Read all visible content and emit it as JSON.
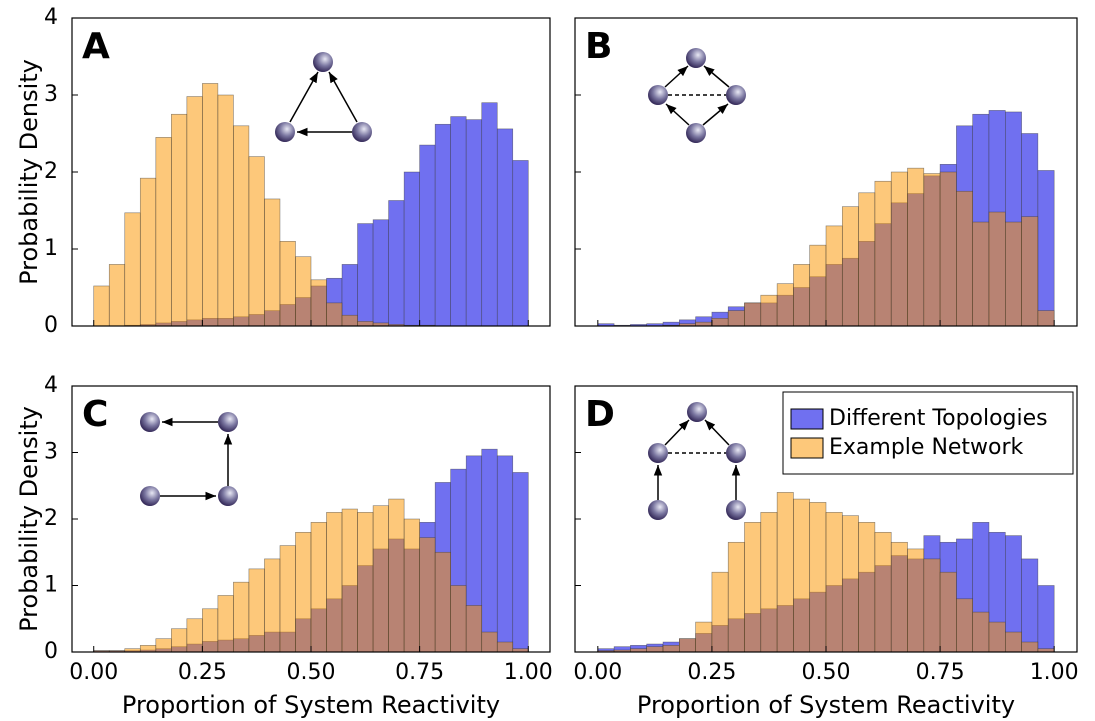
{
  "chart_data": [
    {
      "type": "histogram",
      "title": "A",
      "ylabel": "Probability Density",
      "bins": [
        0,
        0.0357,
        0.0714,
        0.1071,
        0.1429,
        0.1786,
        0.2143,
        0.25,
        0.2857,
        0.3214,
        0.3571,
        0.3929,
        0.4286,
        0.4643,
        0.5,
        0.5357,
        0.5714,
        0.6071,
        0.6429,
        0.6786,
        0.7143,
        0.75,
        0.7857,
        0.8214,
        0.8571,
        0.8929,
        0.9286,
        0.9643,
        1
      ],
      "series": [
        {
          "color": "#7070f0",
          "values": [
            0,
            0,
            0.01,
            0.02,
            0.04,
            0.06,
            0.08,
            0.1,
            0.1,
            0.12,
            0.15,
            0.2,
            0.28,
            0.37,
            0.52,
            0.62,
            0.8,
            1.33,
            1.38,
            1.63,
            2.0,
            2.35,
            2.62,
            2.72,
            2.68,
            2.9,
            2.56,
            2.15
          ]
        },
        {
          "color": "#fb9600",
          "values": [
            0.52,
            0.8,
            1.47,
            1.92,
            2.45,
            2.75,
            2.98,
            3.15,
            3.0,
            2.6,
            2.2,
            1.65,
            1.1,
            0.9,
            0.6,
            0.3,
            0.14,
            0.06,
            0.04,
            0.02,
            0.01,
            0.01,
            0,
            0,
            0,
            0,
            0,
            0
          ]
        }
      ],
      "xlim": [
        -0.05,
        1.05
      ],
      "xticks": [
        0,
        0.25,
        0.5,
        0.75,
        1
      ],
      "ylim": [
        0,
        4
      ],
      "yticks": [
        0,
        1,
        2,
        3,
        4
      ]
    },
    {
      "type": "histogram",
      "title": "B",
      "bins": [
        0,
        0.0357,
        0.0714,
        0.1071,
        0.1429,
        0.1786,
        0.2143,
        0.25,
        0.2857,
        0.3214,
        0.3571,
        0.3929,
        0.4286,
        0.4643,
        0.5,
        0.5357,
        0.5714,
        0.6071,
        0.6429,
        0.6786,
        0.7143,
        0.75,
        0.7857,
        0.8214,
        0.8571,
        0.8929,
        0.9286,
        0.9643,
        1
      ],
      "series": [
        {
          "color": "#7070f0",
          "values": [
            0.03,
            0.01,
            0.02,
            0.03,
            0.05,
            0.08,
            0.12,
            0.18,
            0.25,
            0.3,
            0.3,
            0.4,
            0.5,
            0.64,
            0.8,
            0.88,
            1.1,
            1.33,
            1.6,
            1.72,
            1.95,
            2.1,
            2.6,
            2.75,
            2.8,
            2.78,
            2.5,
            2.02
          ]
        },
        {
          "color": "#fb9600",
          "values": [
            0,
            0,
            0,
            0,
            0.01,
            0.03,
            0.05,
            0.1,
            0.2,
            0.3,
            0.4,
            0.55,
            0.8,
            1.05,
            1.3,
            1.55,
            1.73,
            1.88,
            2.0,
            2.05,
            1.98,
            2.0,
            1.75,
            1.35,
            1.48,
            1.35,
            1.42,
            0.2
          ]
        }
      ],
      "xlim": [
        -0.05,
        1.05
      ],
      "xticks": [
        0,
        0.25,
        0.5,
        0.75,
        1
      ],
      "ylim": [
        0,
        4
      ],
      "yticks": [
        0,
        1,
        2,
        3,
        4
      ]
    },
    {
      "type": "histogram",
      "title": "C",
      "ylabel": "Probability Density",
      "xlabel": "Proportion of System Reactivity",
      "bins": [
        0,
        0.0357,
        0.0714,
        0.1071,
        0.1429,
        0.1786,
        0.2143,
        0.25,
        0.2857,
        0.3214,
        0.3571,
        0.3929,
        0.4286,
        0.4643,
        0.5,
        0.5357,
        0.5714,
        0.6071,
        0.6429,
        0.6786,
        0.7143,
        0.75,
        0.7857,
        0.8214,
        0.8571,
        0.8929,
        0.9286,
        0.9643,
        1
      ],
      "series": [
        {
          "color": "#7070f0",
          "values": [
            0.02,
            0.02,
            0.02,
            0.03,
            0.05,
            0.08,
            0.12,
            0.16,
            0.18,
            0.2,
            0.25,
            0.3,
            0.3,
            0.5,
            0.65,
            0.8,
            1.0,
            1.3,
            1.55,
            1.7,
            1.55,
            1.95,
            2.55,
            2.75,
            2.95,
            3.05,
            2.95,
            2.7
          ]
        },
        {
          "color": "#fb9600",
          "values": [
            0.02,
            0.02,
            0.05,
            0.1,
            0.2,
            0.35,
            0.5,
            0.65,
            0.85,
            1.05,
            1.25,
            1.4,
            1.6,
            1.8,
            1.95,
            2.1,
            2.15,
            2.1,
            2.2,
            2.3,
            2.0,
            1.72,
            1.5,
            1.0,
            0.7,
            0.3,
            0.15,
            0.05
          ]
        }
      ],
      "xlim": [
        -0.05,
        1.05
      ],
      "xticks": [
        {
          "value": 0,
          "label": "0.00"
        },
        {
          "value": 0.25,
          "label": "0.25"
        },
        {
          "value": 0.5,
          "label": "0.50"
        },
        {
          "value": 0.75,
          "label": "0.75"
        },
        {
          "value": 1,
          "label": "1.00"
        }
      ],
      "ylim": [
        0,
        4
      ],
      "yticks": [
        0,
        1,
        2,
        3,
        4
      ]
    },
    {
      "type": "histogram",
      "title": "D",
      "xlabel": "Proportion of System Reactivity",
      "legend": "upper right",
      "bins": [
        0,
        0.0357,
        0.0714,
        0.1071,
        0.1429,
        0.1786,
        0.2143,
        0.25,
        0.2857,
        0.3214,
        0.3571,
        0.3929,
        0.4286,
        0.4643,
        0.5,
        0.5357,
        0.5714,
        0.6071,
        0.6429,
        0.6786,
        0.7143,
        0.75,
        0.7857,
        0.8214,
        0.8571,
        0.8929,
        0.9286,
        0.9643,
        1
      ],
      "series": [
        {
          "name": "Different Topologies",
          "color": "#7070f0",
          "values": [
            0.05,
            0.08,
            0.1,
            0.12,
            0.15,
            0.2,
            0.28,
            0.4,
            0.5,
            0.58,
            0.65,
            0.7,
            0.8,
            0.9,
            1.0,
            1.1,
            1.2,
            1.3,
            1.45,
            1.4,
            1.75,
            1.65,
            1.7,
            1.95,
            1.8,
            1.75,
            1.4,
            1.0
          ]
        },
        {
          "name": "Example Network",
          "color": "#fb9600",
          "values": [
            0.02,
            0.03,
            0.05,
            0.08,
            0.1,
            0.2,
            0.45,
            1.2,
            1.65,
            1.95,
            2.1,
            2.4,
            2.3,
            2.25,
            2.1,
            2.05,
            1.95,
            1.8,
            1.65,
            1.55,
            1.4,
            1.2,
            0.8,
            0.6,
            0.45,
            0.3,
            0.15,
            0.05
          ]
        }
      ],
      "xlim": [
        -0.05,
        1.05
      ],
      "xticks": [
        {
          "value": 0,
          "label": "0.00"
        },
        {
          "value": 0.25,
          "label": "0.25"
        },
        {
          "value": 0.5,
          "label": "0.50"
        },
        {
          "value": 0.75,
          "label": "0.75"
        },
        {
          "value": 1,
          "label": "1.00"
        }
      ],
      "ylim": [
        0,
        4
      ],
      "yticks": [
        0,
        1,
        2,
        3,
        4
      ]
    }
  ]
}
